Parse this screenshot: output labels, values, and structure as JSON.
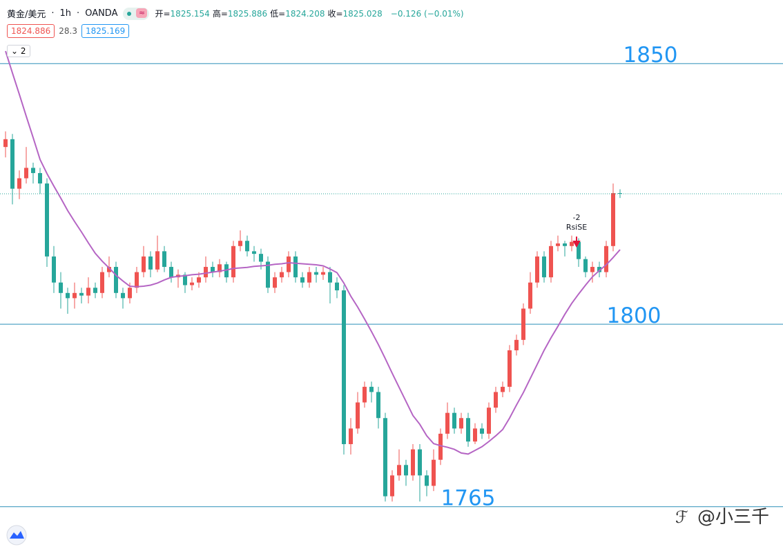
{
  "header": {
    "symbol": "黄金/美元",
    "interval": "1h",
    "source": "OANDA",
    "ohlc": [
      {
        "label": "开=",
        "value": "1825.154"
      },
      {
        "label": "高=",
        "value": "1825.886"
      },
      {
        "label": "低=",
        "value": "1824.208"
      },
      {
        "label": "收=",
        "value": "1825.028"
      }
    ],
    "change": "−0.126 (−0.01%)",
    "bid": "1824.886",
    "spread": "28.3",
    "ask": "1825.169",
    "indicators": "2"
  },
  "chart_data": {
    "type": "candlestick",
    "up_color": "#ef5350",
    "down_color": "#26a69a",
    "ylim": [
      1756.5,
      1862.2
    ],
    "open": [
      1834,
      1835.5,
      1826,
      1828,
      1830,
      1829,
      1827,
      1813,
      1808,
      1806,
      1805,
      1806,
      1805.5,
      1807,
      1806,
      1810,
      1811,
      1806,
      1805,
      1807,
      1810,
      1813,
      1810.5,
      1814,
      1811,
      1809,
      1809.5,
      1807.5,
      1808,
      1809,
      1811,
      1810,
      1811.5,
      1809,
      1815,
      1816,
      1814,
      1813.5,
      1812,
      1807,
      1809,
      1810,
      1813,
      1809,
      1808,
      1810,
      1809.5,
      1810,
      1808,
      1806.5,
      1777,
      1780,
      1785,
      1788,
      1787,
      1782,
      1767,
      1771,
      1773,
      1771,
      1776,
      1771,
      1769,
      1774,
      1779,
      1783,
      1780,
      1782,
      1777.5,
      1780,
      1779,
      1784,
      1787,
      1788,
      1795,
      1797,
      1803,
      1808,
      1813,
      1809,
      1815,
      1815.5,
      1815,
      1815.8,
      1812.5,
      1810,
      1811,
      1810,
      1815,
      1825.154
    ],
    "high": [
      1837,
      1836.5,
      1829.5,
      1834,
      1831,
      1830,
      1828,
      1815,
      1810,
      1807,
      1808,
      1807,
      1809,
      1808,
      1811,
      1813,
      1812,
      1807,
      1808,
      1811,
      1815,
      1814,
      1817,
      1815,
      1812,
      1810.5,
      1810,
      1809,
      1810,
      1813,
      1812,
      1812.5,
      1812,
      1816,
      1818,
      1817,
      1815,
      1814.5,
      1813,
      1810,
      1811,
      1814,
      1814,
      1810,
      1811,
      1811,
      1811,
      1811,
      1809,
      1807.5,
      1782,
      1787,
      1789,
      1789,
      1788,
      1783,
      1772,
      1776,
      1774,
      1777,
      1777,
      1772,
      1776,
      1780,
      1785,
      1784,
      1783,
      1783,
      1781,
      1781,
      1785,
      1788,
      1789,
      1796,
      1798,
      1804,
      1810,
      1814,
      1814,
      1816,
      1817,
      1816,
      1817,
      1816.5,
      1813,
      1812,
      1812,
      1816,
      1827,
      1825.886
    ],
    "low": [
      1832,
      1823,
      1824,
      1827,
      1827,
      1825,
      1811,
      1806,
      1803,
      1802,
      1803,
      1804,
      1804,
      1805,
      1805,
      1809,
      1805,
      1803,
      1804,
      1806,
      1809,
      1809,
      1810,
      1810,
      1808,
      1807,
      1806,
      1806.5,
      1807,
      1808,
      1809,
      1809,
      1808,
      1808,
      1814,
      1813,
      1812,
      1810.5,
      1806,
      1806,
      1808,
      1809,
      1808,
      1807,
      1807,
      1808,
      1808.5,
      1804,
      1805,
      1775,
      1775,
      1779,
      1784,
      1785,
      1780,
      1766,
      1766,
      1770,
      1769,
      1770,
      1766,
      1767,
      1768,
      1773,
      1778,
      1779,
      1779,
      1776.5,
      1777,
      1778,
      1778,
      1783,
      1786,
      1787,
      1794,
      1796,
      1802,
      1807,
      1808,
      1808,
      1814,
      1813,
      1814,
      1811,
      1809,
      1808,
      1809,
      1809,
      1814,
      1824.208
    ],
    "close": [
      1835.5,
      1826,
      1828,
      1830,
      1829,
      1827,
      1813,
      1808,
      1806,
      1805,
      1806,
      1805.5,
      1807,
      1806,
      1810,
      1811,
      1806,
      1805,
      1807,
      1810,
      1813,
      1810.5,
      1814,
      1811,
      1809,
      1809.5,
      1807.5,
      1808,
      1809,
      1811,
      1810,
      1811.5,
      1809,
      1815,
      1816,
      1814,
      1813.5,
      1812,
      1807,
      1809,
      1810,
      1813,
      1809,
      1808,
      1810,
      1809.5,
      1810,
      1808,
      1806.5,
      1777,
      1780,
      1785,
      1788,
      1787,
      1782,
      1767,
      1771,
      1773,
      1771,
      1776,
      1771,
      1769,
      1774,
      1779,
      1783,
      1780,
      1782,
      1777.5,
      1780,
      1779,
      1784,
      1787,
      1788,
      1795,
      1797,
      1803,
      1808,
      1813,
      1809,
      1815,
      1815.5,
      1815,
      1815.8,
      1812.5,
      1810,
      1811,
      1810,
      1815,
      1825.154,
      1825.028
    ],
    "ma": {
      "color": "#b565c4",
      "values": [
        1852.4,
        1848.2,
        1844.1,
        1839.9,
        1835.8,
        1831.6,
        1828.9,
        1826.5,
        1824.2,
        1821.8,
        1819.7,
        1817.7,
        1815.6,
        1813.6,
        1812.1,
        1810.8,
        1809.4,
        1808.3,
        1807.3,
        1807.2,
        1807.3,
        1807.5,
        1807.9,
        1808.5,
        1809.0,
        1809.2,
        1809.3,
        1809.5,
        1809.6,
        1809.8,
        1810.0,
        1810.2,
        1810.4,
        1810.7,
        1810.8,
        1810.9,
        1811.1,
        1811.2,
        1811.3,
        1811.5,
        1811.6,
        1811.8,
        1811.7,
        1811.6,
        1811.5,
        1811.4,
        1811.2,
        1810.6,
        1809.9,
        1807.9,
        1805.4,
        1803.3,
        1801.0,
        1798.6,
        1796.1,
        1793.4,
        1790.6,
        1787.9,
        1785.2,
        1782.5,
        1780.8,
        1778.6,
        1777.1,
        1776.7,
        1776.4,
        1776.0,
        1775.3,
        1775.1,
        1775.8,
        1776.5,
        1777.5,
        1778.6,
        1779.8,
        1782.0,
        1784.5,
        1786.9,
        1789.6,
        1792.3,
        1795.0,
        1797.4,
        1799.6,
        1801.9,
        1804.0,
        1805.8,
        1807.5,
        1809.1,
        1810.3,
        1811.4,
        1812.8,
        1814.3
      ]
    },
    "levels": [
      1850,
      1800,
      1765
    ],
    "level_color": "#2a8fb8",
    "level_label_color": "#2196f3",
    "annotations": [
      "-2",
      "RsiSE"
    ],
    "annotation_arrow_color": "#e0163a",
    "watermark": "@小三千"
  }
}
